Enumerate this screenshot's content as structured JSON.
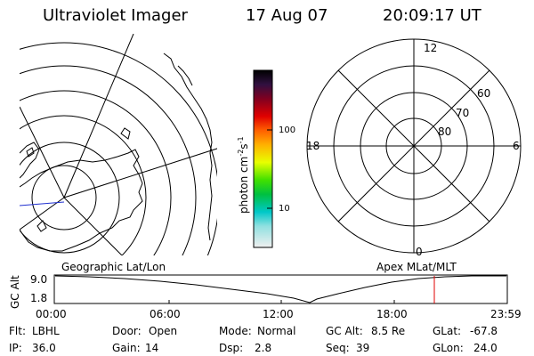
{
  "header": {
    "title": "Ultraviolet Imager",
    "date": "17 Aug 07",
    "time": "20:09:17 UT"
  },
  "colorbar": {
    "label": "photon cm",
    "label_sup1": "-2",
    "label_mid": "s",
    "label_sup2": "-1",
    "ticks": [
      "100",
      "10"
    ]
  },
  "polar_plot": {
    "mlt_labels": {
      "top": "12",
      "right": "6",
      "bottom": "0",
      "left": "18"
    },
    "lat_labels": [
      "60",
      "70",
      "80"
    ]
  },
  "map_labels": {
    "left": "Geographic Lat/Lon",
    "right": "Apex MLat/MLT"
  },
  "altitude_plot": {
    "ylabel": "GC Alt",
    "y_ticks": [
      "9.0",
      "1.8"
    ],
    "x_ticks": [
      "00:00",
      "06:00",
      "12:00",
      "18:00",
      "23:59"
    ]
  },
  "status": {
    "filter_label": "Flt:",
    "filter_value": "LBHL",
    "door_label": "Door:",
    "door_value": "Open",
    "mode_label": "Mode:",
    "mode_value": "Normal",
    "gcalt_label": "GC Alt:",
    "gcalt_value": "8.5 Re",
    "glat_label": "GLat:",
    "glat_value": "-67.8",
    "ip_label": "IP:",
    "ip_value": "36.0",
    "gain_label": "Gain:",
    "gain_value": "14",
    "dsp_label": "Dsp:",
    "dsp_value": "2.8",
    "seq_label": "Seq:",
    "seq_value": "39",
    "glon_label": "GLon:",
    "glon_value": "24.0"
  },
  "colors": {
    "marker": "#e00000",
    "blue_line": "#2030d0"
  }
}
